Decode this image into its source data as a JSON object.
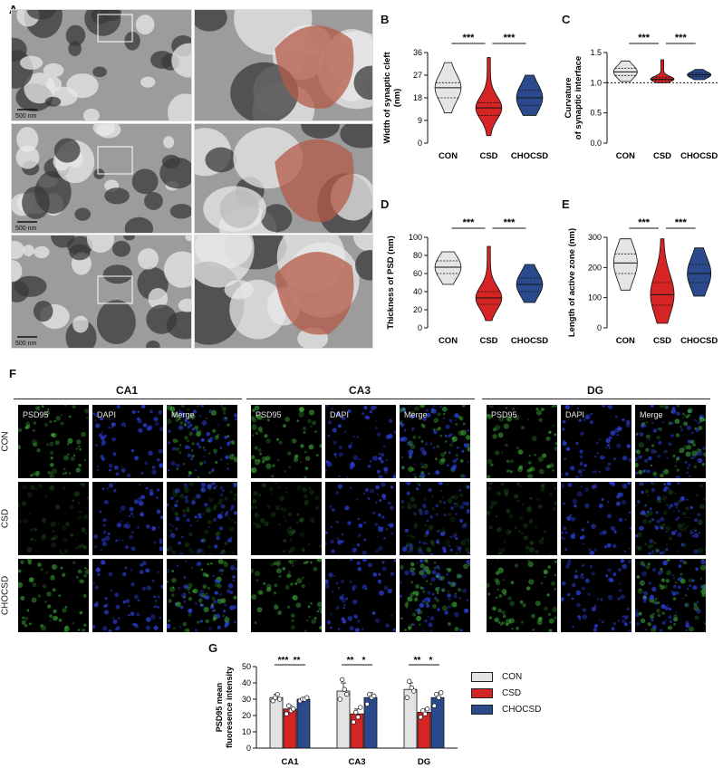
{
  "panels": {
    "A": "A",
    "B": "B",
    "C": "C",
    "D": "D",
    "E": "E",
    "F": "F",
    "G": "G"
  },
  "em": {
    "scale_labels": [
      "500 nm",
      "500 nm",
      "500 nm"
    ],
    "colors": {
      "bg": "#9c9c9c",
      "dark": "#3a3a3a",
      "light": "#e8e8e8",
      "highlight": "#b65a4a"
    }
  },
  "fluorescence": {
    "regions": [
      "CA1",
      "CA3",
      "DG"
    ],
    "channels": [
      "PSD95",
      "DAPI",
      "Merge"
    ],
    "groups": [
      "CON",
      "CSD",
      "CHOCSD"
    ],
    "colors": {
      "green": "#3fae3a",
      "blue": "#2c3fd8"
    }
  },
  "chart_data": [
    {
      "type": "violin",
      "panel": "B",
      "ylabel": "Width of synaptic cleft (nm)",
      "ylabel_lines": [
        "Width of synaptic cleft",
        "(nm)"
      ],
      "categories": [
        "CON",
        "CSD",
        "CHOCSD"
      ],
      "yticks": [
        0,
        9,
        18,
        27,
        36
      ],
      "ylim": [
        0,
        36
      ],
      "violins": [
        {
          "min": 12,
          "max": 32,
          "q1": 18,
          "median": 22,
          "q3": 24,
          "color": "#e5e5e5"
        },
        {
          "min": 3,
          "max": 34,
          "q1": 11,
          "median": 14,
          "q3": 16,
          "color": "#d42424"
        },
        {
          "min": 11,
          "max": 27,
          "q1": 15,
          "median": 18,
          "q3": 21,
          "color": "#2b4a8c"
        }
      ],
      "significance": [
        {
          "from": 0,
          "to": 1,
          "label": "***"
        },
        {
          "from": 1,
          "to": 2,
          "label": "***"
        }
      ]
    },
    {
      "type": "violin",
      "panel": "C",
      "ylabel": "Curvature of synaptic interface",
      "ylabel_lines": [
        "Curvature",
        "of synaptic interface"
      ],
      "categories": [
        "CON",
        "CSD",
        "CHOCSD"
      ],
      "yticks": [
        "0.0",
        "0.5",
        "1.0",
        "1.5"
      ],
      "ylim": [
        0,
        1.5
      ],
      "reference_line": 1.0,
      "violins": [
        {
          "min": 1.02,
          "max": 1.36,
          "q1": 1.12,
          "median": 1.18,
          "q3": 1.24,
          "color": "#e5e5e5"
        },
        {
          "min": 1.0,
          "max": 1.38,
          "q1": 1.04,
          "median": 1.06,
          "q3": 1.09,
          "color": "#d42424"
        },
        {
          "min": 1.05,
          "max": 1.22,
          "q1": 1.1,
          "median": 1.13,
          "q3": 1.16,
          "color": "#2b4a8c"
        }
      ],
      "significance": [
        {
          "from": 0,
          "to": 1,
          "label": "***"
        },
        {
          "from": 1,
          "to": 2,
          "label": "***"
        }
      ]
    },
    {
      "type": "violin",
      "panel": "D",
      "ylabel": "Thickness of PSD (nm)",
      "ylabel_lines": [
        "Thickness of PSD (nm)"
      ],
      "categories": [
        "CON",
        "CSD",
        "CHOCSD"
      ],
      "yticks": [
        0,
        20,
        40,
        60,
        80,
        100
      ],
      "ylim": [
        0,
        100
      ],
      "violins": [
        {
          "min": 48,
          "max": 84,
          "q1": 60,
          "median": 67,
          "q3": 74,
          "color": "#e5e5e5"
        },
        {
          "min": 8,
          "max": 90,
          "q1": 26,
          "median": 33,
          "q3": 40,
          "color": "#d42424"
        },
        {
          "min": 28,
          "max": 70,
          "q1": 40,
          "median": 48,
          "q3": 55,
          "color": "#2b4a8c"
        }
      ],
      "significance": [
        {
          "from": 0,
          "to": 1,
          "label": "***"
        },
        {
          "from": 1,
          "to": 2,
          "label": "***"
        }
      ]
    },
    {
      "type": "violin",
      "panel": "E",
      "ylabel": "Length of active zone (nm)",
      "ylabel_lines": [
        "Length of active zone (nm)"
      ],
      "categories": [
        "CON",
        "CSD",
        "CHOCSD"
      ],
      "yticks": [
        0,
        100,
        200,
        300
      ],
      "ylim": [
        0,
        300
      ],
      "violins": [
        {
          "min": 125,
          "max": 295,
          "q1": 180,
          "median": 215,
          "q3": 245,
          "color": "#e5e5e5"
        },
        {
          "min": 15,
          "max": 295,
          "q1": 75,
          "median": 110,
          "q3": 150,
          "color": "#d42424"
        },
        {
          "min": 105,
          "max": 265,
          "q1": 150,
          "median": 180,
          "q3": 210,
          "color": "#2b4a8c"
        }
      ],
      "significance": [
        {
          "from": 0,
          "to": 1,
          "label": "***"
        },
        {
          "from": 1,
          "to": 2,
          "label": "***"
        }
      ]
    },
    {
      "type": "bar",
      "panel": "G",
      "ylabel": "PSD95 mean fluoresence intensity",
      "ylabel_lines": [
        "PSD95 mean",
        "fluoresence intensity"
      ],
      "categories": [
        "CA1",
        "CA3",
        "DG"
      ],
      "yticks": [
        0,
        10,
        20,
        30,
        40,
        50
      ],
      "ylim": [
        0,
        50
      ],
      "legend_position": "right",
      "series": [
        {
          "name": "CON",
          "color": "#e3e3e3",
          "values": [
            31,
            35,
            36
          ],
          "err": [
            2,
            5,
            4
          ],
          "points": [
            [
              29,
              31,
              33,
              30
            ],
            [
              30,
              42,
              36,
              33
            ],
            [
              31,
              41,
              37,
              35
            ]
          ]
        },
        {
          "name": "CSD",
          "color": "#d42424",
          "values": [
            24,
            21,
            22
          ],
          "err": [
            2,
            3,
            2
          ],
          "points": [
            [
              21,
              26,
              23,
              24
            ],
            [
              16,
              22,
              19,
              25
            ],
            [
              19,
              23,
              21,
              24
            ]
          ]
        },
        {
          "name": "CHOCSD",
          "color": "#2b4a8c",
          "values": [
            30,
            31,
            31
          ],
          "err": [
            1,
            3,
            3
          ],
          "points": [
            [
              29,
              30,
              30,
              31
            ],
            [
              27,
              33,
              31,
              32
            ],
            [
              26,
              33,
              31,
              34
            ]
          ]
        }
      ],
      "significance": [
        {
          "group": 0,
          "from": 0,
          "to": 1,
          "label": "***"
        },
        {
          "group": 0,
          "from": 1,
          "to": 2,
          "label": "**"
        },
        {
          "group": 1,
          "from": 0,
          "to": 1,
          "label": "**"
        },
        {
          "group": 1,
          "from": 1,
          "to": 2,
          "label": "*"
        },
        {
          "group": 2,
          "from": 0,
          "to": 1,
          "label": "**"
        },
        {
          "group": 2,
          "from": 1,
          "to": 2,
          "label": "*"
        }
      ]
    }
  ]
}
